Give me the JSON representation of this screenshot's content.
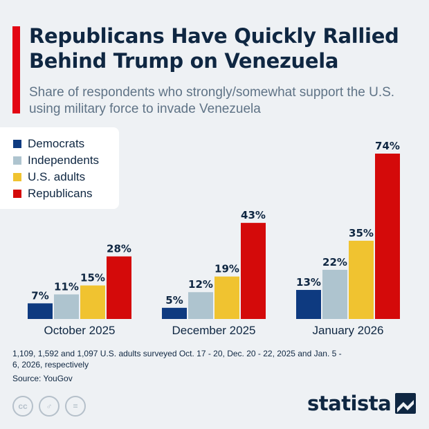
{
  "title": "Republicans Have Quickly Rallied Behind Trump on Venezuela",
  "subtitle": "Share of respondents who strongly/somewhat support the U.S. using military force to invade Venezuela",
  "legend": [
    {
      "label": "Democrats",
      "color": "#0e3a80"
    },
    {
      "label": "Independents",
      "color": "#aec4cf"
    },
    {
      "label": "U.S. adults",
      "color": "#f0c330"
    },
    {
      "label": "Republicans",
      "color": "#d40a0a"
    }
  ],
  "chart_data": {
    "type": "bar",
    "categories": [
      "October 2025",
      "December 2025",
      "January 2026"
    ],
    "series": [
      {
        "name": "Democrats",
        "color": "#0e3a80",
        "values": [
          7,
          5,
          13
        ]
      },
      {
        "name": "Independents",
        "color": "#aec4cf",
        "values": [
          11,
          12,
          22
        ]
      },
      {
        "name": "U.S. adults",
        "color": "#f0c330",
        "values": [
          15,
          19,
          35
        ]
      },
      {
        "name": "Republicans",
        "color": "#d40a0a",
        "values": [
          28,
          43,
          74
        ]
      }
    ],
    "value_suffix": "%",
    "ylim": [
      0,
      74
    ],
    "legend_position": "top-left"
  },
  "note": "1,109, 1,592 and 1,097 U.S. adults surveyed Oct. 17 - 20, Dec. 20 - 22, 2025 and Jan. 5 - 6, 2026, respectively",
  "source": "Source: YouGov",
  "license_icons": [
    "cc-icon",
    "person-icon",
    "equals-icon"
  ],
  "license_glyphs": [
    "cc",
    "♂",
    "="
  ],
  "brand": "statista"
}
